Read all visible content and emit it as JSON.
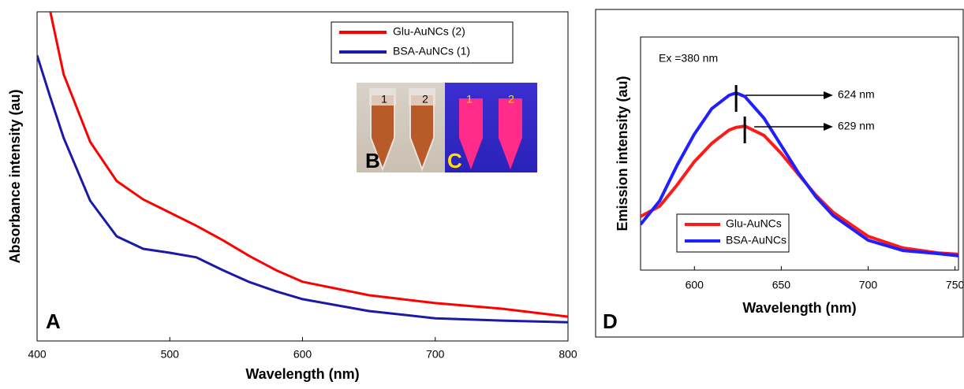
{
  "chart_data": [
    {
      "type": "line",
      "panel_label": "A",
      "x_label": "Wavelength (nm)",
      "y_label": "Absorbance intensity (au)",
      "x": [
        400,
        410,
        420,
        440,
        460,
        480,
        500,
        520,
        540,
        560,
        580,
        600,
        650,
        700,
        750,
        800
      ],
      "series": [
        {
          "name": "Glu-AuNCs (2)",
          "color": "#ff0000",
          "values": [
            null,
            1.0,
            0.81,
            0.605,
            0.486,
            0.43,
            0.39,
            0.35,
            0.306,
            0.258,
            0.215,
            0.18,
            0.139,
            0.115,
            0.098,
            0.074
          ]
        },
        {
          "name": "BSA-AuNCs (1)",
          "color": "#1a1aa8",
          "values": [
            0.868,
            0.74,
            0.617,
            0.426,
            0.318,
            0.28,
            0.268,
            0.254,
            0.215,
            0.179,
            0.151,
            0.127,
            0.091,
            0.069,
            0.062,
            0.057
          ]
        }
      ],
      "xlim": [
        400,
        800
      ],
      "xticks": [
        400,
        500,
        600,
        700,
        800
      ],
      "ylim": [
        0,
        1
      ],
      "legend": "upper right",
      "insets": [
        {
          "label": "B",
          "tube_labels": [
            "1",
            "2"
          ]
        },
        {
          "label": "C",
          "tube_labels": [
            "1",
            "2"
          ]
        }
      ]
    },
    {
      "type": "line",
      "panel_label": "D",
      "x_label": "Wavelength (nm)",
      "y_label": "Emission intensity (au)",
      "x": [
        569,
        580,
        590,
        600,
        610,
        620,
        624,
        629,
        640,
        650,
        660,
        670,
        680,
        700,
        720,
        740,
        752
      ],
      "series": [
        {
          "name": "Glu-AuNCs",
          "color": "#ff1a1a",
          "values": [
            0.23,
            0.274,
            0.365,
            0.466,
            0.544,
            0.601,
            0.612,
            0.618,
            0.578,
            0.5,
            0.409,
            0.321,
            0.247,
            0.145,
            0.095,
            0.074,
            0.068
          ]
        },
        {
          "name": "BSA-AuNCs",
          "color": "#2020ff",
          "values": [
            0.196,
            0.297,
            0.449,
            0.584,
            0.693,
            0.75,
            0.76,
            0.745,
            0.652,
            0.534,
            0.416,
            0.314,
            0.233,
            0.128,
            0.084,
            0.071,
            0.061
          ]
        }
      ],
      "xlim": [
        569,
        752
      ],
      "xticks": [
        600,
        650,
        700,
        750
      ],
      "ylim": [
        0,
        1
      ],
      "legend": "lower left",
      "annotations": [
        {
          "text": "Ex =380 nm"
        },
        {
          "text": "624 nm",
          "x": 624
        },
        {
          "text": "629 nm",
          "x": 629
        }
      ]
    }
  ]
}
